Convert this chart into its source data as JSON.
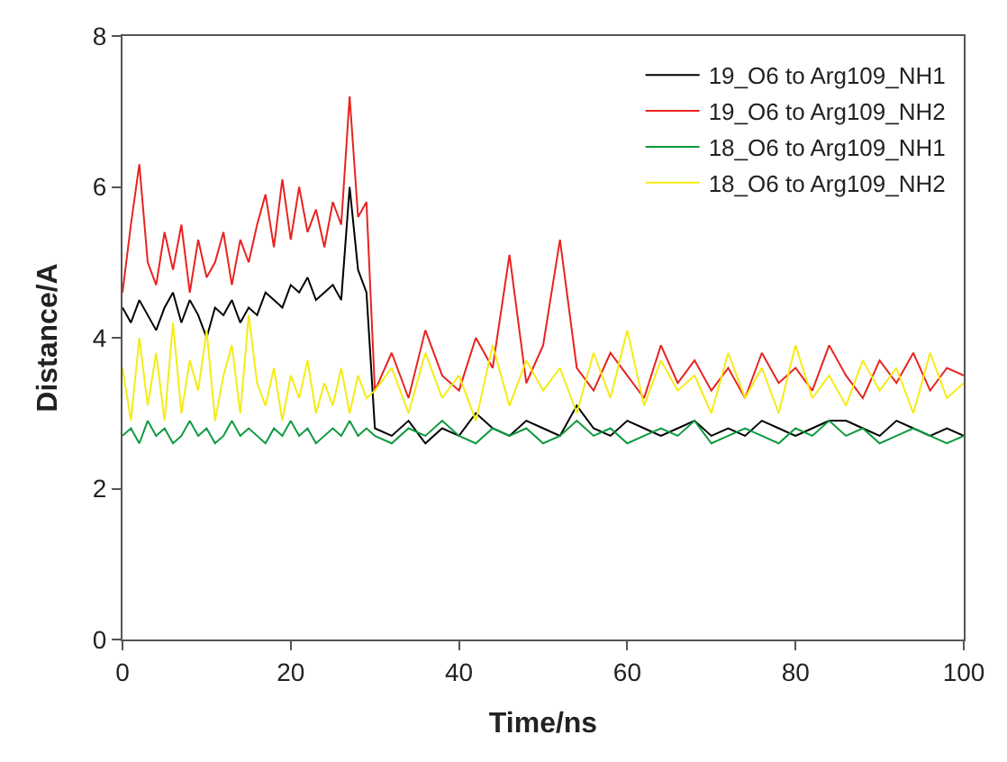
{
  "chart_data": {
    "type": "line",
    "xlabel": "Time/ns",
    "ylabel": "Distance/A",
    "x": [
      0,
      1,
      2,
      3,
      4,
      5,
      6,
      7,
      8,
      9,
      10,
      11,
      12,
      13,
      14,
      15,
      16,
      17,
      18,
      19,
      20,
      21,
      22,
      23,
      24,
      25,
      26,
      27,
      28,
      29,
      30,
      32,
      34,
      36,
      38,
      40,
      42,
      44,
      46,
      48,
      50,
      52,
      54,
      56,
      58,
      60,
      62,
      64,
      66,
      68,
      70,
      72,
      74,
      76,
      78,
      80,
      82,
      84,
      86,
      88,
      90,
      92,
      94,
      96,
      98,
      100
    ],
    "xlim": [
      0,
      100
    ],
    "xticks": [
      0,
      20,
      40,
      60,
      80,
      100
    ],
    "ylim": [
      0,
      8
    ],
    "yticks": [
      0,
      2,
      4,
      6,
      8
    ],
    "legend": "top right",
    "marker": "none",
    "line_style": "solid",
    "series": [
      {
        "name": "19_O6 to Arg109_NH1",
        "color": "#000000",
        "values": [
          4.4,
          4.2,
          4.5,
          4.3,
          4.1,
          4.4,
          4.6,
          4.2,
          4.5,
          4.3,
          4.0,
          4.4,
          4.3,
          4.5,
          4.2,
          4.4,
          4.3,
          4.6,
          4.5,
          4.4,
          4.7,
          4.6,
          4.8,
          4.5,
          4.6,
          4.7,
          4.5,
          6.0,
          4.9,
          4.6,
          2.8,
          2.7,
          2.9,
          2.6,
          2.8,
          2.7,
          3.0,
          2.8,
          2.7,
          2.9,
          2.8,
          2.7,
          3.1,
          2.8,
          2.7,
          2.9,
          2.8,
          2.7,
          2.8,
          2.9,
          2.7,
          2.8,
          2.7,
          2.9,
          2.8,
          2.7,
          2.8,
          2.9,
          2.9,
          2.8,
          2.7,
          2.9,
          2.8,
          2.7,
          2.8,
          2.7
        ]
      },
      {
        "name": "19_O6 to Arg109_NH2",
        "color": "#e8231f",
        "values": [
          4.6,
          5.5,
          6.3,
          5.0,
          4.7,
          5.4,
          4.9,
          5.5,
          4.6,
          5.3,
          4.8,
          5.0,
          5.4,
          4.7,
          5.3,
          5.0,
          5.5,
          5.9,
          5.2,
          6.1,
          5.3,
          6.0,
          5.4,
          5.7,
          5.2,
          5.8,
          5.5,
          7.2,
          5.6,
          5.8,
          3.3,
          3.8,
          3.2,
          4.1,
          3.5,
          3.3,
          4.0,
          3.6,
          5.1,
          3.4,
          3.9,
          5.3,
          3.6,
          3.3,
          3.8,
          3.5,
          3.2,
          3.9,
          3.4,
          3.7,
          3.3,
          3.6,
          3.2,
          3.8,
          3.4,
          3.6,
          3.3,
          3.9,
          3.5,
          3.2,
          3.7,
          3.4,
          3.8,
          3.3,
          3.6,
          3.5
        ]
      },
      {
        "name": "18_O6 to Arg109_NH1",
        "color": "#0b9a3c",
        "values": [
          2.7,
          2.8,
          2.6,
          2.9,
          2.7,
          2.8,
          2.6,
          2.7,
          2.9,
          2.7,
          2.8,
          2.6,
          2.7,
          2.9,
          2.7,
          2.8,
          2.7,
          2.6,
          2.8,
          2.7,
          2.9,
          2.7,
          2.8,
          2.6,
          2.7,
          2.8,
          2.7,
          2.9,
          2.7,
          2.8,
          2.7,
          2.6,
          2.8,
          2.7,
          2.9,
          2.7,
          2.6,
          2.8,
          2.7,
          2.8,
          2.6,
          2.7,
          2.9,
          2.7,
          2.8,
          2.6,
          2.7,
          2.8,
          2.7,
          2.9,
          2.6,
          2.7,
          2.8,
          2.7,
          2.6,
          2.8,
          2.7,
          2.9,
          2.7,
          2.8,
          2.6,
          2.7,
          2.8,
          2.7,
          2.6,
          2.7
        ]
      },
      {
        "name": "18_O6 to Arg109_NH2",
        "color": "#f5ec14",
        "values": [
          3.6,
          2.9,
          4.0,
          3.1,
          3.8,
          2.9,
          4.2,
          3.0,
          3.7,
          3.3,
          4.1,
          2.9,
          3.5,
          3.9,
          3.0,
          4.3,
          3.4,
          3.1,
          3.6,
          2.9,
          3.5,
          3.2,
          3.7,
          3.0,
          3.4,
          3.1,
          3.6,
          3.0,
          3.5,
          3.2,
          3.3,
          3.6,
          3.0,
          3.8,
          3.2,
          3.5,
          2.9,
          3.9,
          3.1,
          3.7,
          3.3,
          3.6,
          3.0,
          3.8,
          3.2,
          4.1,
          3.1,
          3.7,
          3.3,
          3.5,
          3.0,
          3.8,
          3.2,
          3.6,
          3.0,
          3.9,
          3.2,
          3.5,
          3.1,
          3.7,
          3.3,
          3.6,
          3.0,
          3.8,
          3.2,
          3.4
        ]
      }
    ]
  }
}
